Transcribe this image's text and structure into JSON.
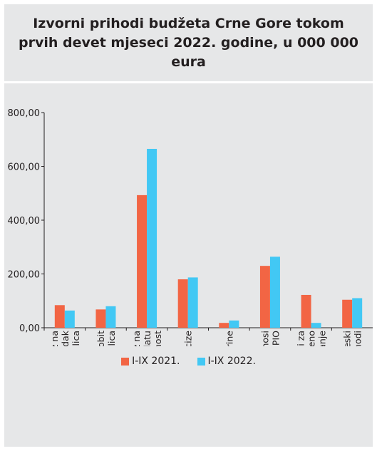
{
  "chart_data": {
    "type": "bar",
    "title": "Izvorni prihodi budžeta Crne Gore tokom prvih devet mjeseci 2022. godine, u 000 000 eura",
    "categories": [
      [
        "Porez na",
        "dohodak",
        "fizičkih lica"
      ],
      [
        "Porez na dobit",
        "pravnih lica"
      ],
      [
        "Porez na",
        "dodatu",
        "vrijednost"
      ],
      [
        "Akcize"
      ],
      [
        "Carine"
      ],
      [
        "Doprinosi",
        "za PIO"
      ],
      [
        "Doprinosi za",
        "zdravstveno",
        "osiguranje"
      ],
      [
        "Neporeski",
        "prihodi"
      ]
    ],
    "series": [
      {
        "name": "I-IX 2021.",
        "color": "#f26544",
        "values": [
          84,
          68,
          493,
          180,
          18,
          230,
          122,
          104
        ]
      },
      {
        "name": "I-IX 2022.",
        "color": "#42c8f4",
        "values": [
          64,
          80,
          665,
          187,
          27,
          264,
          18,
          110
        ]
      }
    ],
    "ylim": [
      0,
      800
    ],
    "yticks": [
      "0,00",
      "200,00",
      "400,00",
      "600,00",
      "800,00"
    ],
    "grid": false,
    "legend_position": "bottom"
  }
}
